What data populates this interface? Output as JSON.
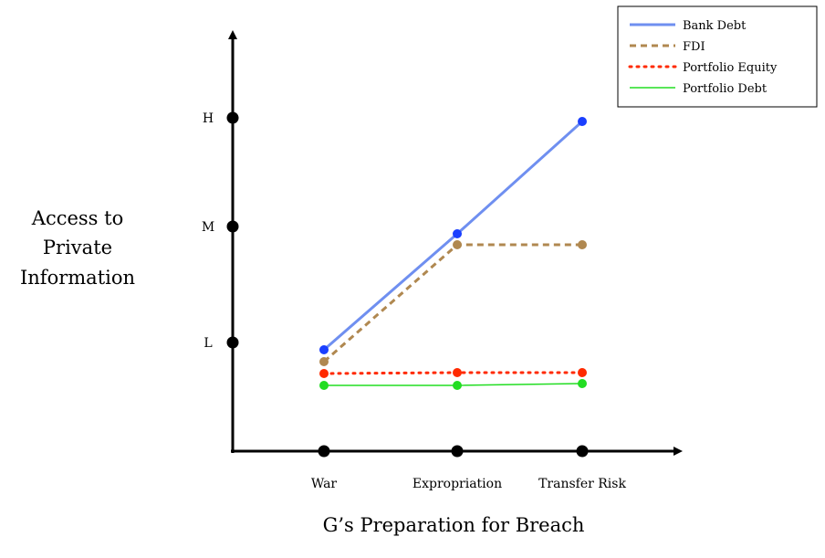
{
  "chart_data": {
    "type": "line",
    "categories": [
      "War",
      "Expropriation",
      "Transfer Risk"
    ],
    "y_levels": [
      "L",
      "M",
      "H"
    ],
    "xlabel": "G’s Preparation for Breach",
    "ylabel_lines": [
      "Access to",
      "Private",
      "Information"
    ],
    "legend_position": "top-right",
    "grid": false,
    "series": [
      {
        "name": "Bank Debt",
        "values": [
          0.9,
          2.1,
          3.0
        ],
        "color": "#6f8ff0",
        "marker_color": "#1a3fff",
        "style": "solid"
      },
      {
        "name": "FDI",
        "values": [
          1.0,
          2.0,
          2.0
        ],
        "color": "#b08850",
        "marker_color": "#b08850",
        "style": "dashed"
      },
      {
        "name": "Portfolio Equity",
        "values": [
          0.9,
          0.9,
          0.9
        ],
        "color": "#ff2a00",
        "marker_color": "#ff2a00",
        "style": "dotted"
      },
      {
        "name": "Portfolio Debt",
        "values": [
          0.8,
          0.8,
          0.8
        ],
        "color": "#22dd22",
        "marker_color": "#22dd22",
        "style": "solid-thin"
      }
    ]
  }
}
